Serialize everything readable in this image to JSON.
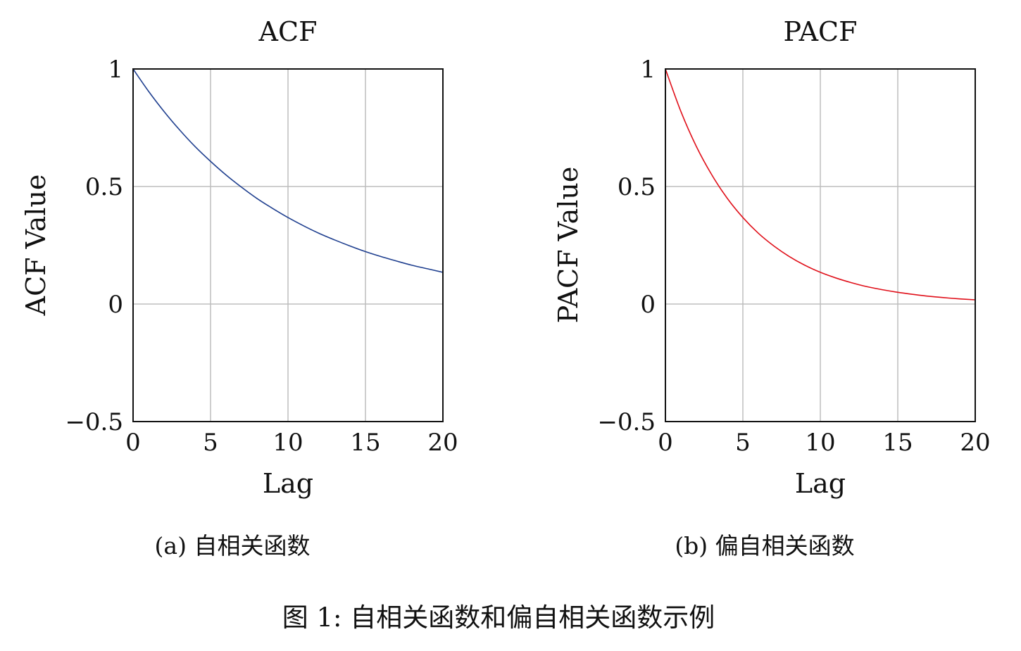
{
  "chart_data": [
    {
      "type": "line",
      "title": "ACF",
      "xlabel": "Lag",
      "ylabel": "ACF Value",
      "xlim": [
        0,
        20
      ],
      "ylim": [
        -0.5,
        1
      ],
      "xticks": [
        "0",
        "5",
        "10",
        "15",
        "20"
      ],
      "yticks": [
        "−0.5",
        "0",
        "0.5",
        "1"
      ],
      "ytick_values": [
        -0.5,
        0,
        0.5,
        1
      ],
      "xtick_values": [
        0,
        5,
        10,
        15,
        20
      ],
      "grid": true,
      "caption": "(a) 自相关函数",
      "series": [
        {
          "color": "#1f3f8f",
          "x": [
            0,
            1,
            2,
            3,
            4,
            5,
            6,
            7,
            8,
            9,
            10,
            11,
            12,
            13,
            14,
            15,
            16,
            17,
            18,
            19,
            20
          ],
          "y": [
            1.0,
            0.905,
            0.819,
            0.741,
            0.67,
            0.607,
            0.549,
            0.497,
            0.449,
            0.407,
            0.368,
            0.333,
            0.301,
            0.273,
            0.247,
            0.223,
            0.202,
            0.183,
            0.165,
            0.15,
            0.135
          ]
        }
      ]
    },
    {
      "type": "line",
      "title": "PACF",
      "xlabel": "Lag",
      "ylabel": "PACF Value",
      "xlim": [
        0,
        20
      ],
      "ylim": [
        -0.5,
        1
      ],
      "xticks": [
        "0",
        "5",
        "10",
        "15",
        "20"
      ],
      "yticks": [
        "−0.5",
        "0",
        "0.5",
        "1"
      ],
      "ytick_values": [
        -0.5,
        0,
        0.5,
        1
      ],
      "xtick_values": [
        0,
        5,
        10,
        15,
        20
      ],
      "grid": true,
      "caption": "(b) 偏自相关函数",
      "series": [
        {
          "color": "#e0101a",
          "x": [
            0,
            1,
            2,
            3,
            4,
            5,
            6,
            7,
            8,
            9,
            10,
            11,
            12,
            13,
            14,
            15,
            16,
            17,
            18,
            19,
            20
          ],
          "y": [
            1.0,
            0.819,
            0.67,
            0.549,
            0.449,
            0.368,
            0.301,
            0.247,
            0.202,
            0.165,
            0.135,
            0.111,
            0.091,
            0.074,
            0.061,
            0.05,
            0.041,
            0.033,
            0.027,
            0.022,
            0.018
          ]
        }
      ]
    }
  ],
  "figure_caption": "图 1: 自相关函数和偏自相关函数示例"
}
